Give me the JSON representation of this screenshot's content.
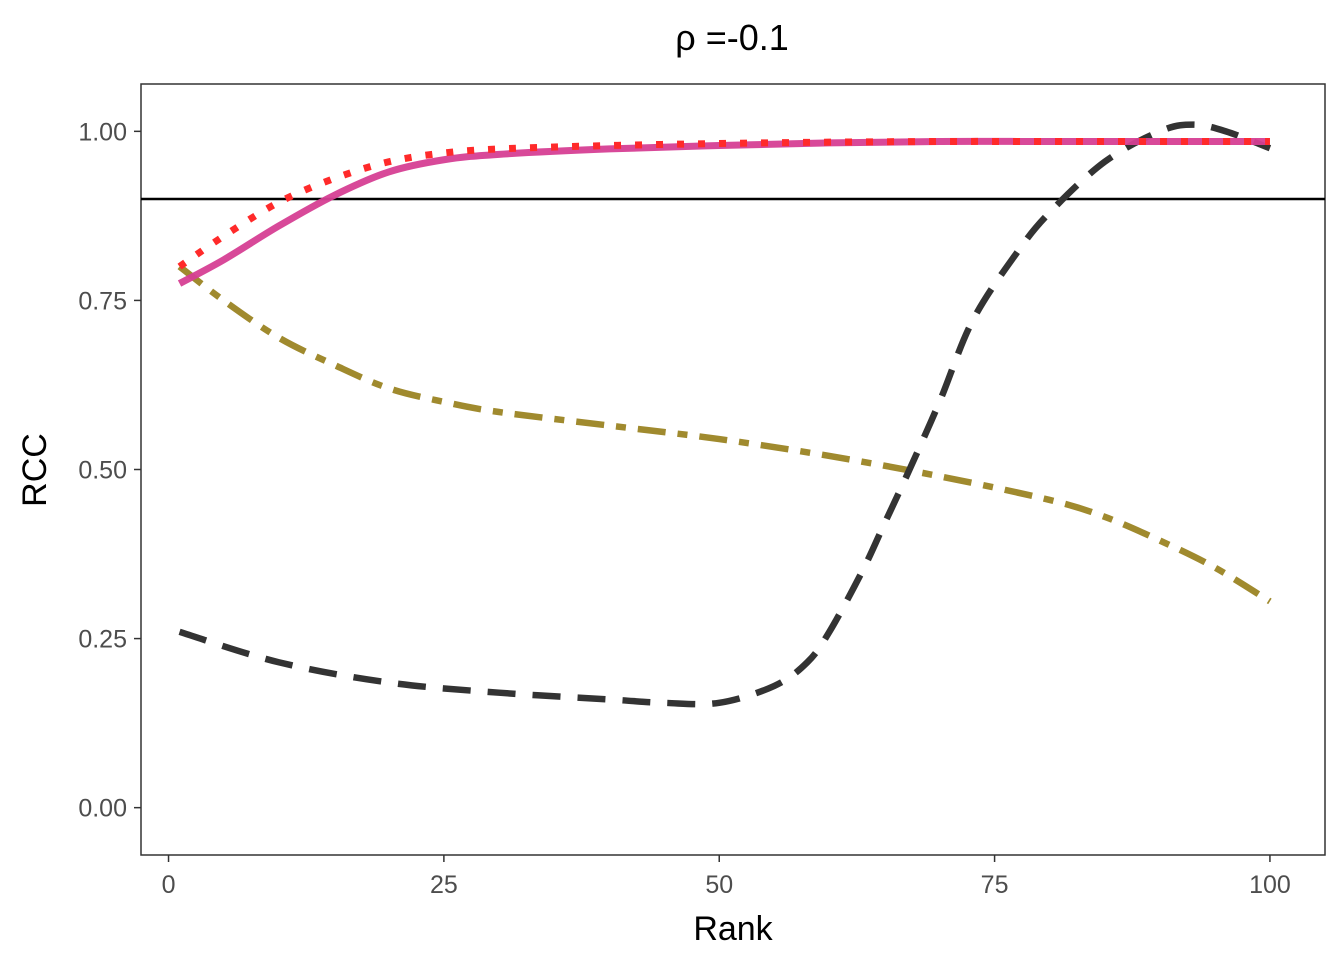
{
  "chart_data": {
    "type": "line",
    "title": "ρ =-0.1",
    "xlabel": "Rank",
    "ylabel": "RCC",
    "xlim": [
      -2.5,
      105
    ],
    "ylim": [
      -0.07,
      1.07
    ],
    "xticks": [
      0,
      25,
      50,
      75,
      100
    ],
    "xtick_labels": [
      "0",
      "25",
      "50",
      "75",
      "100"
    ],
    "yticks": [
      0,
      0.25,
      0.5,
      0.75,
      1.0
    ],
    "ytick_labels": [
      "0.00",
      "0.25",
      "0.50",
      "0.75",
      "1.00"
    ],
    "grid": false,
    "hline": 0.9,
    "hline_color": "#000000",
    "series": [
      {
        "name": "olive-dashdot",
        "color": "#A08A2E",
        "style": "dashdot",
        "x": [
          1,
          5,
          10,
          15,
          20,
          25,
          30,
          40,
          50,
          60,
          70,
          80,
          85,
          90,
          95,
          100
        ],
        "y": [
          0.8,
          0.75,
          0.695,
          0.655,
          0.62,
          0.6,
          0.585,
          0.565,
          0.545,
          0.52,
          0.49,
          0.455,
          0.43,
          0.395,
          0.355,
          0.305
        ]
      },
      {
        "name": "black-dashed",
        "color": "#333333",
        "style": "dashed",
        "x": [
          1,
          10,
          20,
          30,
          40,
          45,
          50,
          55,
          58,
          60,
          63,
          65,
          67,
          70,
          73,
          77,
          80,
          85,
          90,
          93,
          96,
          100
        ],
        "y": [
          0.26,
          0.215,
          0.185,
          0.17,
          0.16,
          0.155,
          0.155,
          0.18,
          0.215,
          0.26,
          0.35,
          0.42,
          0.49,
          0.6,
          0.72,
          0.82,
          0.88,
          0.955,
          1.0,
          1.01,
          1.0,
          0.975
        ]
      },
      {
        "name": "magenta-solid",
        "color": "#D63F94",
        "style": "solid",
        "x": [
          1,
          5,
          10,
          15,
          20,
          25,
          30,
          40,
          50,
          60,
          70,
          80,
          90,
          100
        ],
        "y": [
          0.775,
          0.81,
          0.86,
          0.905,
          0.94,
          0.958,
          0.966,
          0.974,
          0.979,
          0.983,
          0.985,
          0.985,
          0.985,
          0.985
        ]
      },
      {
        "name": "red-dotted",
        "color": "#FF2A2A",
        "style": "dotted",
        "x": [
          1,
          5,
          10,
          15,
          20,
          25,
          30,
          40,
          50,
          60,
          70,
          80,
          90,
          100
        ],
        "y": [
          0.8,
          0.845,
          0.895,
          0.93,
          0.955,
          0.968,
          0.974,
          0.979,
          0.982,
          0.984,
          0.985,
          0.985,
          0.985,
          0.985
        ]
      }
    ]
  }
}
